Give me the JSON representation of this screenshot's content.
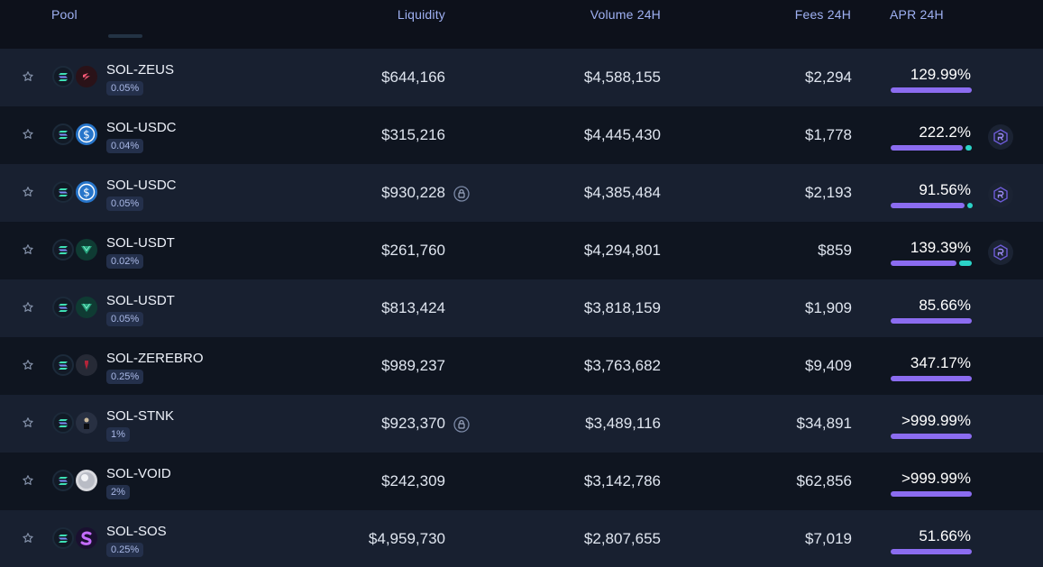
{
  "header": {
    "pool": "Pool",
    "liquidity": "Liquidity",
    "volume": "Volume 24H",
    "fees": "Fees 24H",
    "apr": "APR 24H"
  },
  "colors": {
    "apr_primary": "#8b6cf0",
    "apr_secondary": "#2bd3c8",
    "sol_green": "#3ee0b4",
    "usdc_blue": "#2775ca",
    "usdt_teal": "#26a17b"
  },
  "rows": [
    {
      "pair": "SOL-ZEUS",
      "fee": "0.05%",
      "liquidity": "$644,166",
      "volume": "$4,588,155",
      "fees": "$2,294",
      "apr": "129.99%",
      "token2_icon": "zeus-token-icon",
      "locked": false,
      "farm": false,
      "apr_split": [
        1.0,
        0.0
      ]
    },
    {
      "pair": "SOL-USDC",
      "fee": "0.04%",
      "liquidity": "$315,216",
      "volume": "$4,445,430",
      "fees": "$1,778",
      "apr": "222.2%",
      "token2_icon": "usdc-token-icon",
      "locked": false,
      "farm": true,
      "apr_split": [
        0.92,
        0.08
      ]
    },
    {
      "pair": "SOL-USDC",
      "fee": "0.05%",
      "liquidity": "$930,228",
      "volume": "$4,385,484",
      "fees": "$2,193",
      "apr": "91.56%",
      "token2_icon": "usdc-token-icon",
      "locked": true,
      "farm": true,
      "apr_split": [
        0.94,
        0.06
      ]
    },
    {
      "pair": "SOL-USDT",
      "fee": "0.02%",
      "liquidity": "$261,760",
      "volume": "$4,294,801",
      "fees": "$859",
      "apr": "139.39%",
      "token2_icon": "usdt-token-icon",
      "locked": false,
      "farm": true,
      "apr_split": [
        0.84,
        0.16
      ]
    },
    {
      "pair": "SOL-USDT",
      "fee": "0.05%",
      "liquidity": "$813,424",
      "volume": "$3,818,159",
      "fees": "$1,909",
      "apr": "85.66%",
      "token2_icon": "usdt-token-icon",
      "locked": false,
      "farm": false,
      "apr_split": [
        1.0,
        0.0
      ]
    },
    {
      "pair": "SOL-ZEREBRO",
      "fee": "0.25%",
      "liquidity": "$989,237",
      "volume": "$3,763,682",
      "fees": "$9,409",
      "apr": "347.17%",
      "token2_icon": "zerebro-token-icon",
      "locked": false,
      "farm": false,
      "apr_split": [
        1.0,
        0.0
      ]
    },
    {
      "pair": "SOL-STNK",
      "fee": "1%",
      "liquidity": "$923,370",
      "volume": "$3,489,116",
      "fees": "$34,891",
      "apr": ">999.99%",
      "token2_icon": "stnk-token-icon",
      "locked": true,
      "farm": false,
      "apr_split": [
        1.0,
        0.0
      ]
    },
    {
      "pair": "SOL-VOID",
      "fee": "2%",
      "liquidity": "$242,309",
      "volume": "$3,142,786",
      "fees": "$62,856",
      "apr": ">999.99%",
      "token2_icon": "void-token-icon",
      "locked": false,
      "farm": false,
      "apr_split": [
        1.0,
        0.0
      ]
    },
    {
      "pair": "SOL-SOS",
      "fee": "0.25%",
      "liquidity": "$4,959,730",
      "volume": "$2,807,655",
      "fees": "$7,019",
      "apr": "51.66%",
      "token2_icon": "sos-token-icon",
      "locked": false,
      "farm": false,
      "apr_split": [
        1.0,
        0.0
      ]
    }
  ]
}
